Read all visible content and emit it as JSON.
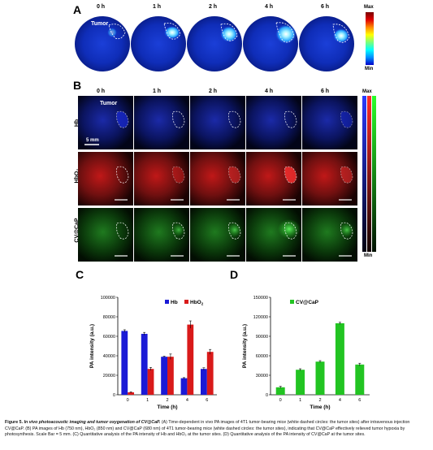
{
  "panels": {
    "a": {
      "letter": "A",
      "times": [
        "0 h",
        "1 h",
        "2 h",
        "4 h",
        "6 h"
      ],
      "tumor_label": "Tumor",
      "colorbar": {
        "max": "Max",
        "min": "Min"
      }
    },
    "b": {
      "letter": "B",
      "times": [
        "0 h",
        "1 h",
        "2 h",
        "4 h",
        "6 h"
      ],
      "tumor_label": "Tumor",
      "scale_label": "5 mm",
      "rows": [
        "Hb",
        "HbO₂",
        "CV@CaP"
      ],
      "colorbar": {
        "max": "Max",
        "min": "Min"
      },
      "colors": {
        "hb": "#1a2bd9",
        "hbo2": "#e02020",
        "cvcap": "#22cc22"
      }
    },
    "c": {
      "letter": "C"
    },
    "d": {
      "letter": "D"
    }
  },
  "chart_data": [
    {
      "type": "bar",
      "categories": [
        "0",
        "1",
        "2",
        "4",
        "6"
      ],
      "series": [
        {
          "name": "Hb",
          "values": [
            65500,
            62500,
            39000,
            17000,
            26500
          ],
          "errors": [
            1200,
            1500,
            600,
            600,
            1200
          ],
          "color": "#1a1ad6"
        },
        {
          "name": "HbO2",
          "values": [
            2500,
            26500,
            39000,
            72000,
            44000
          ],
          "errors": [
            500,
            1500,
            2800,
            3800,
            2500
          ],
          "color": "#d91a1a"
        }
      ],
      "xlabel": "Time (h)",
      "ylabel": "PA intensity (a.u.)",
      "ylim": [
        0,
        100000
      ],
      "yticks": [
        "0",
        "20000",
        "40000",
        "60000",
        "80000",
        "100000"
      ],
      "legend": "top-right"
    },
    {
      "type": "bar",
      "categories": [
        "0",
        "1",
        "2",
        "4",
        "6"
      ],
      "series": [
        {
          "name": "CV@CaP",
          "values": [
            11500,
            38500,
            51000,
            110000,
            46500
          ],
          "errors": [
            1500,
            1500,
            1500,
            1500,
            2000
          ],
          "color": "#22c422"
        }
      ],
      "xlabel": "Time (h)",
      "ylabel": "PA intensity (a.u.)",
      "ylim": [
        0,
        150000
      ],
      "yticks": [
        "0",
        "30000",
        "60000",
        "90000",
        "120000",
        "150000"
      ],
      "legend": "top-left"
    }
  ],
  "caption": {
    "figure_label": "Figure 5.",
    "title": "In vivo photoacoustic imaging and tumor oxygenation of CV@CaP.",
    "text": "(A) Time-dependent in vivo PA images of 4T1 tumor-bearing mice (white dashed circles: the tumor sites) after intravenous injection CV@CaP. (B) PA images of Hb (750 nm), HbO₂ (850 nm) and CV@CaP (680 nm) of 4T1 tumor-bearing mice (white dashed circles: the tumor sites), indicating that CV@CaP effectively relieved tumor hypoxia by photosynthesis. Scale Bar = 5 mm. (C) Quantitative analysis of the PA intensity of Hb and HbO₂ at the tumor sites. (D) Quantitative analysis of the PA intensity of CV@CaP at the tumor sites."
  }
}
